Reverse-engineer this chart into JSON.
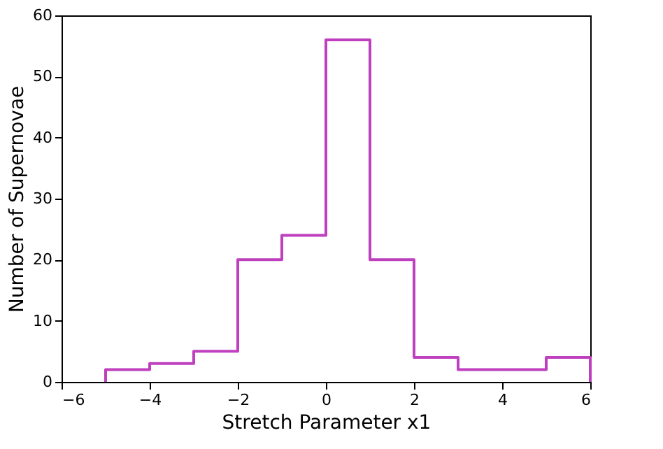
{
  "chart_data": {
    "type": "histogram",
    "xlabel": "Stretch Parameter x1",
    "ylabel": "Number of Supernovae",
    "bins": [
      -5,
      -4,
      -3,
      -2,
      -1,
      0,
      1,
      2,
      3,
      4,
      5,
      6
    ],
    "values": [
      2,
      3,
      5,
      20,
      24,
      56,
      20,
      4,
      2,
      2,
      4
    ],
    "color": "#bf40bf",
    "xlim": [
      -6,
      6
    ],
    "xticks": [
      -6,
      -4,
      -2,
      0,
      2,
      4,
      6
    ],
    "ylim": [
      0,
      60
    ],
    "yticks": [
      0,
      10,
      20,
      30,
      40,
      50,
      60
    ],
    "grid": false
  }
}
